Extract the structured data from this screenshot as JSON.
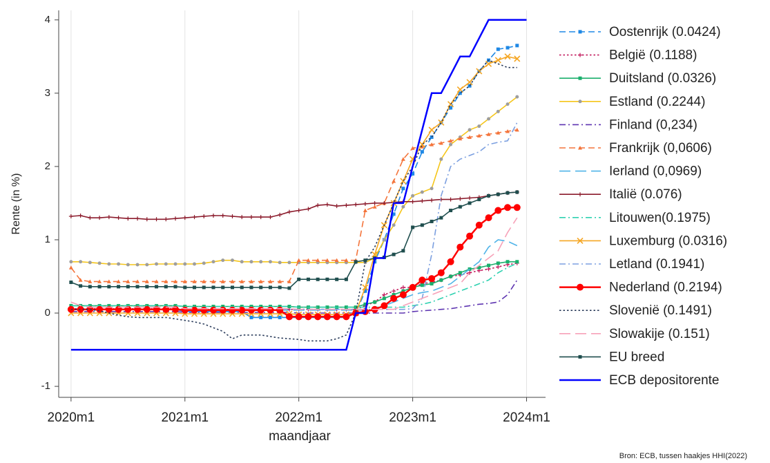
{
  "chart_data": {
    "type": "line",
    "x": [
      0,
      1,
      2,
      3,
      4,
      5,
      6,
      7,
      8,
      9,
      10,
      11,
      12,
      13,
      14,
      15,
      16,
      17,
      18,
      19,
      20,
      21,
      22,
      23,
      24,
      25,
      26,
      27,
      28,
      29,
      30,
      31,
      32,
      33,
      34,
      35,
      36,
      37,
      38,
      39,
      40,
      41,
      42,
      43,
      44,
      45,
      46,
      47,
      48
    ],
    "xlabel": "maandjaar",
    "ylabel": "Rente (in %)",
    "source": "Bron: ECB,  tussen haakjes HHI(2022)",
    "xlim": [
      -1.3,
      50
    ],
    "xticks": [
      {
        "value": 0,
        "label": "2020m1"
      },
      {
        "value": 12,
        "label": "2021m1"
      },
      {
        "value": 24,
        "label": "2022m1"
      },
      {
        "value": 36,
        "label": "2023m1"
      },
      {
        "value": 48,
        "label": "2024m1"
      }
    ],
    "ylim": [
      -1.15,
      4.13
    ],
    "yticks": [
      -1,
      0,
      1,
      2,
      3,
      4
    ],
    "grid": "x",
    "legend": "right",
    "series": [
      {
        "name": "Oostenrijk (0.0424)",
        "color": "#1e88e5",
        "dash": "dash",
        "marker": "square",
        "values": [
          0.05,
          0.05,
          0.05,
          0.05,
          0.05,
          0.05,
          0.05,
          0.05,
          0.05,
          0.05,
          0.05,
          0.05,
          0.02,
          0.02,
          0.02,
          0.02,
          0.02,
          0.02,
          0.02,
          -0.06,
          -0.06,
          -0.06,
          -0.06,
          -0.06,
          -0.06,
          -0.06,
          -0.06,
          -0.06,
          -0.06,
          -0.06,
          0,
          0.3,
          0.7,
          1.0,
          1.35,
          1.7,
          1.9,
          2.2,
          2.4,
          2.6,
          2.8,
          3.0,
          3.1,
          3.3,
          3.45,
          3.6,
          3.62,
          3.65,
          null
        ]
      },
      {
        "name": "België (0.1188)",
        "color": "#c2185b",
        "dash": "dot",
        "marker": "plus",
        "values": [
          0.06,
          0.06,
          0.06,
          0.06,
          0.06,
          0.06,
          0.06,
          0.06,
          0.06,
          0.06,
          0.06,
          0.06,
          0.05,
          0.05,
          0.05,
          0.05,
          0.05,
          0.05,
          0.05,
          0.05,
          0.05,
          0.05,
          0.05,
          0.05,
          0.05,
          0.05,
          0.05,
          0.05,
          0.05,
          0.05,
          0.05,
          0.1,
          0.15,
          0.25,
          0.3,
          0.35,
          0.35,
          0.4,
          0.42,
          0.45,
          0.5,
          0.52,
          0.55,
          0.58,
          0.6,
          0.63,
          0.66,
          0.68,
          null
        ]
      },
      {
        "name": "Duitsland (0.0326)",
        "color": "#1aaf6c",
        "dash": "solid",
        "marker": "square",
        "values": [
          0.1,
          0.1,
          0.1,
          0.1,
          0.1,
          0.1,
          0.1,
          0.1,
          0.1,
          0.1,
          0.1,
          0.1,
          0.09,
          0.09,
          0.09,
          0.09,
          0.09,
          0.09,
          0.09,
          0.09,
          0.09,
          0.09,
          0.09,
          0.09,
          0.08,
          0.08,
          0.08,
          0.08,
          0.08,
          0.08,
          0.08,
          0.12,
          0.15,
          0.2,
          0.25,
          0.3,
          0.35,
          0.38,
          0.4,
          0.45,
          0.5,
          0.55,
          0.6,
          0.62,
          0.65,
          0.68,
          0.7,
          0.7,
          null
        ]
      },
      {
        "name": "Estland (0.2244)",
        "color": "#f5c518",
        "marker_color": "#9e9e9e",
        "dash": "solid",
        "marker": "circle",
        "values": [
          0.7,
          0.7,
          0.69,
          0.68,
          0.67,
          0.67,
          0.66,
          0.66,
          0.66,
          0.67,
          0.67,
          0.67,
          0.67,
          0.67,
          0.68,
          0.7,
          0.72,
          0.72,
          0.7,
          0.7,
          0.7,
          0.7,
          0.69,
          0.69,
          0.69,
          0.69,
          0.69,
          0.69,
          0.69,
          0.69,
          0.69,
          0.69,
          0.75,
          1.0,
          1.2,
          1.45,
          1.6,
          1.65,
          1.7,
          2.1,
          2.3,
          2.4,
          2.5,
          2.55,
          2.65,
          2.75,
          2.85,
          2.95,
          null
        ]
      },
      {
        "name": "Finland (0,234)",
        "color": "#5e35b1",
        "dash": "dashdot",
        "marker": "none",
        "values": [
          0.02,
          0.02,
          0.02,
          0.02,
          0.02,
          0.02,
          0.02,
          0.02,
          0.02,
          0.02,
          0.02,
          0.02,
          0.01,
          0.01,
          0.01,
          0.01,
          0.01,
          0.01,
          0.01,
          0.01,
          0.01,
          0.01,
          0.01,
          0.01,
          0,
          0,
          0,
          0,
          0,
          0,
          0,
          0,
          0,
          0,
          0,
          0,
          0.02,
          0.03,
          0.04,
          0.05,
          0.06,
          0.08,
          0.1,
          0.12,
          0.13,
          0.15,
          0.25,
          0.45,
          null
        ]
      },
      {
        "name": "Frankrijk (0,0606)",
        "color": "#f4743b",
        "dash": "dash",
        "marker": "triangle",
        "values": [
          0.62,
          0.45,
          0.43,
          0.43,
          0.43,
          0.43,
          0.43,
          0.43,
          0.43,
          0.43,
          0.43,
          0.43,
          0.43,
          0.43,
          0.43,
          0.43,
          0.43,
          0.43,
          0.43,
          0.43,
          0.43,
          0.43,
          0.43,
          0.43,
          0.72,
          0.72,
          0.72,
          0.72,
          0.72,
          0.72,
          0.72,
          1.4,
          1.45,
          1.5,
          1.8,
          2.1,
          2.25,
          2.27,
          2.3,
          2.32,
          2.35,
          2.38,
          2.4,
          2.42,
          2.44,
          2.46,
          2.48,
          2.5,
          null
        ]
      },
      {
        "name": "Ierland (0,0969)",
        "color": "#4fb3e8",
        "dash": "longdash",
        "marker": "none",
        "values": [
          0.05,
          0.05,
          0.05,
          0.05,
          0.05,
          0.05,
          0.05,
          0.05,
          0.05,
          0.05,
          0.05,
          0.05,
          0.04,
          0.04,
          0.04,
          0.04,
          0.04,
          0.04,
          0.04,
          0.04,
          0.04,
          0.04,
          0.04,
          0.04,
          0.04,
          0.04,
          0.04,
          0.04,
          0.04,
          0.04,
          0.04,
          0.04,
          0.06,
          0.1,
          0.15,
          0.2,
          0.25,
          0.28,
          0.3,
          0.35,
          0.4,
          0.5,
          0.6,
          0.7,
          0.9,
          1.0,
          0.98,
          0.92,
          null
        ]
      },
      {
        "name": "Italië (0.076)",
        "color": "#8b1a2b",
        "dash": "solid",
        "marker": "plus",
        "values": [
          1.32,
          1.33,
          1.3,
          1.3,
          1.31,
          1.3,
          1.29,
          1.29,
          1.28,
          1.28,
          1.28,
          1.29,
          1.3,
          1.31,
          1.32,
          1.33,
          1.33,
          1.32,
          1.31,
          1.31,
          1.31,
          1.31,
          1.34,
          1.38,
          1.4,
          1.42,
          1.47,
          1.48,
          1.46,
          1.47,
          1.48,
          1.49,
          1.5,
          1.5,
          1.51,
          1.52,
          1.52,
          1.53,
          1.54,
          1.55,
          1.55,
          1.56,
          1.57,
          1.58,
          1.6,
          1.62,
          1.64,
          1.65,
          null
        ]
      },
      {
        "name": "Litouwen(0.1975)",
        "color": "#2ed1b0",
        "dash": "dashdot",
        "marker": "none",
        "values": [
          0.1,
          0.1,
          0.1,
          0.1,
          0.1,
          0.1,
          0.1,
          0.1,
          0.1,
          0.1,
          0.1,
          0.1,
          0.09,
          0.09,
          0.09,
          0.09,
          0.09,
          0.09,
          0.09,
          0.09,
          0.09,
          0.09,
          0.09,
          0.09,
          0.08,
          0.08,
          0.08,
          0.08,
          0.08,
          0.08,
          0.08,
          0.08,
          0.08,
          0.08,
          0.08,
          0.08,
          0.1,
          0.12,
          0.15,
          0.2,
          0.25,
          0.3,
          0.35,
          0.4,
          0.45,
          0.55,
          0.62,
          0.68,
          null
        ]
      },
      {
        "name": "Luxemburg (0.0316)",
        "color": "#f5a623",
        "dash": "solid",
        "marker": "x",
        "values": [
          0,
          0,
          0,
          0,
          0,
          0,
          0,
          0,
          0,
          0,
          0,
          0,
          -0.01,
          -0.01,
          -0.01,
          -0.01,
          -0.01,
          -0.01,
          -0.01,
          -0.01,
          -0.01,
          -0.01,
          -0.01,
          -0.01,
          -0.02,
          -0.02,
          -0.02,
          -0.02,
          -0.02,
          -0.02,
          0,
          0.35,
          0.8,
          1.2,
          1.5,
          1.8,
          2.1,
          2.3,
          2.5,
          2.6,
          2.85,
          3.05,
          3.15,
          3.3,
          3.4,
          3.45,
          3.5,
          3.47,
          null
        ]
      },
      {
        "name": "Letland (0.1941)",
        "color": "#7b9fe0",
        "dash": "dashdot",
        "marker": "none",
        "values": [
          0.05,
          0.05,
          0.05,
          0.05,
          0.05,
          0.05,
          0.05,
          0.05,
          0.05,
          0.05,
          0.05,
          0.05,
          0.05,
          0.05,
          0.05,
          0.05,
          0.05,
          0.05,
          0.05,
          0.05,
          0.05,
          0.05,
          0.05,
          0.05,
          0.05,
          0.05,
          0.05,
          0.05,
          0.05,
          0.05,
          0.05,
          0.05,
          0.05,
          0.05,
          0.05,
          0.05,
          0.06,
          0.2,
          0.8,
          1.6,
          2.0,
          2.1,
          2.15,
          2.2,
          2.3,
          2.33,
          2.35,
          2.6,
          null
        ]
      },
      {
        "name": "Nederland (0.2194)",
        "color": "#ff0000",
        "dash": "solid",
        "marker": "bigcircle",
        "values": [
          0.05,
          0.05,
          0.05,
          0.05,
          0.05,
          0.05,
          0.05,
          0.05,
          0.05,
          0.05,
          0.05,
          0.05,
          0.04,
          0.04,
          0.04,
          0.04,
          0.04,
          0.04,
          0.04,
          0.04,
          0.04,
          0.04,
          0.04,
          -0.05,
          -0.05,
          -0.05,
          -0.05,
          -0.05,
          -0.05,
          -0.05,
          0,
          0.02,
          0.05,
          0.1,
          0.2,
          0.25,
          0.35,
          0.45,
          0.47,
          0.55,
          0.7,
          0.9,
          1.05,
          1.2,
          1.3,
          1.4,
          1.44,
          1.44,
          null
        ]
      },
      {
        "name": "Slovenië (0.1491)",
        "color": "#2a3b5a",
        "dash": "dot",
        "marker": "none",
        "values": [
          0.05,
          0.05,
          0.05,
          0.03,
          0,
          -0.03,
          -0.05,
          -0.06,
          -0.06,
          -0.06,
          -0.06,
          -0.08,
          -0.1,
          -0.12,
          -0.15,
          -0.2,
          -0.25,
          -0.35,
          -0.3,
          -0.3,
          -0.3,
          -0.32,
          -0.34,
          -0.35,
          -0.36,
          -0.38,
          -0.38,
          -0.38,
          -0.35,
          -0.3,
          0,
          0.7,
          0.9,
          1.2,
          1.5,
          1.8,
          2.0,
          2.3,
          2.4,
          2.6,
          2.85,
          3.0,
          3.1,
          3.3,
          3.45,
          3.4,
          3.35,
          3.35,
          null
        ]
      },
      {
        "name": "Slowakije (0.151)",
        "color": "#f7a1b8",
        "dash": "longdash",
        "marker": "none",
        "values": [
          0.15,
          0.1,
          0.08,
          0.08,
          0.08,
          0.08,
          0.08,
          0.08,
          0.08,
          0.08,
          0.08,
          0.08,
          0.06,
          0.06,
          0.06,
          0.06,
          0.06,
          0.06,
          0.06,
          0.06,
          0.06,
          0.06,
          0.06,
          0.06,
          0.05,
          0.05,
          0.05,
          0.05,
          0.05,
          0.05,
          0.05,
          0.05,
          0.05,
          0.05,
          0.05,
          0.1,
          0.15,
          0.2,
          0.25,
          0.3,
          0.35,
          0.4,
          0.55,
          0.65,
          0.75,
          0.85,
          1.1,
          1.3,
          null
        ]
      },
      {
        "name": "EU breed",
        "color": "#1f4e4e",
        "dash": "solid",
        "marker": "square",
        "values": [
          0.42,
          0.37,
          0.36,
          0.36,
          0.36,
          0.36,
          0.36,
          0.36,
          0.36,
          0.36,
          0.36,
          0.36,
          0.35,
          0.35,
          0.35,
          0.35,
          0.35,
          0.35,
          0.35,
          0.35,
          0.35,
          0.35,
          0.35,
          0.34,
          0.46,
          0.46,
          0.46,
          0.46,
          0.46,
          0.46,
          0.7,
          0.72,
          0.75,
          0.76,
          0.8,
          0.85,
          1.17,
          1.2,
          1.25,
          1.3,
          1.4,
          1.45,
          1.5,
          1.55,
          1.6,
          1.62,
          1.64,
          1.65,
          null
        ]
      },
      {
        "name": "ECB depositorente",
        "color": "#0000ff",
        "dash": "solid",
        "marker": "none",
        "width": 2.5,
        "values": [
          -0.5,
          -0.5,
          -0.5,
          -0.5,
          -0.5,
          -0.5,
          -0.5,
          -0.5,
          -0.5,
          -0.5,
          -0.5,
          -0.5,
          -0.5,
          -0.5,
          -0.5,
          -0.5,
          -0.5,
          -0.5,
          -0.5,
          -0.5,
          -0.5,
          -0.5,
          -0.5,
          -0.5,
          -0.5,
          -0.5,
          -0.5,
          -0.5,
          -0.5,
          -0.5,
          0,
          0,
          0.75,
          0.75,
          1.5,
          1.5,
          2,
          2.5,
          3,
          3,
          3.25,
          3.5,
          3.5,
          3.75,
          4,
          4,
          4,
          4,
          4
        ]
      }
    ]
  }
}
